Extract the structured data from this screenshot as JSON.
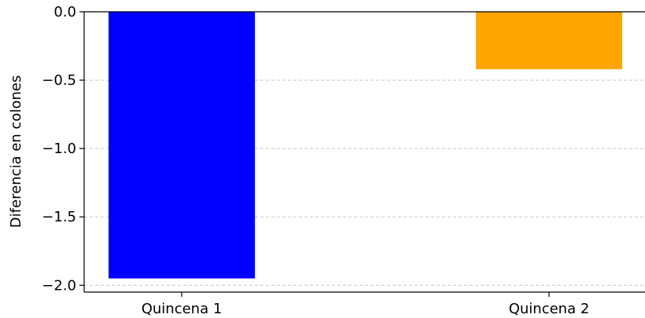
{
  "chart_data": {
    "type": "bar",
    "categories": [
      "Quincena 1",
      "Quincena 2"
    ],
    "values": [
      -1.95,
      -0.42
    ],
    "colors": [
      "#0000ff",
      "#ffa500"
    ],
    "title": "",
    "xlabel": "",
    "ylabel": "Diferencia en colones",
    "ylim": [
      -2.05,
      0.0
    ],
    "yticks": [
      0.0,
      -0.5,
      -1.0,
      -1.5,
      -2.0
    ],
    "ytick_labels": [
      "0.0",
      "−0.5",
      "−1.0",
      "−1.5",
      "−2.0"
    ],
    "grid": "y-dashed"
  }
}
